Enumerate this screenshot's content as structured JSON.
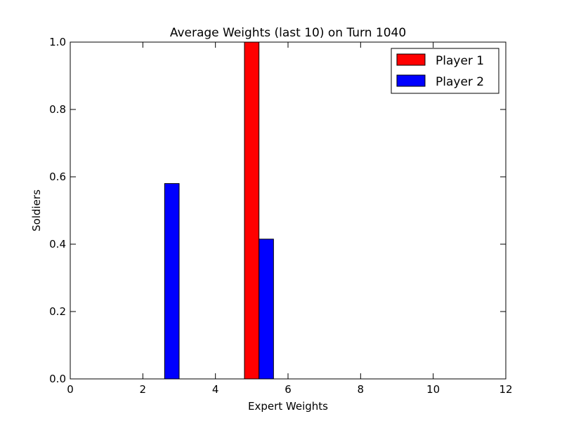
{
  "chart_data": {
    "type": "bar",
    "title": "Average Weights (last 10) on Turn 1040",
    "xlabel": "Expert Weights",
    "ylabel": "Soldiers",
    "xlim": [
      0,
      12
    ],
    "ylim": [
      0,
      1.0
    ],
    "xticks": [
      0,
      2,
      4,
      6,
      8,
      10,
      12
    ],
    "yticks": [
      0.0,
      0.2,
      0.4,
      0.6,
      0.8,
      1.0
    ],
    "xtick_labels": [
      "0",
      "2",
      "4",
      "6",
      "8",
      "10",
      "12"
    ],
    "ytick_labels": [
      "0.0",
      "0.2",
      "0.4",
      "0.6",
      "0.8",
      "1.0"
    ],
    "bar_width": 0.4,
    "x": [
      0.8,
      1.6,
      2.2,
      3.0,
      3.8,
      4.8,
      5.6,
      6.4,
      7.2,
      8.0,
      8.8,
      9.6,
      10.4
    ],
    "series": [
      {
        "name": "Player 1",
        "color": "#ff0000",
        "offset": 0,
        "values": [
          0.0,
          0.0,
          0.0,
          0.0,
          0.0,
          1.0,
          0.0,
          0.0,
          0.0,
          0.0,
          0.0,
          0.0,
          0.0
        ]
      },
      {
        "name": "Player 2",
        "color": "#0000ff",
        "offset": 0.4,
        "values": [
          0.0,
          0.0,
          0.58,
          0.0,
          0.0,
          0.415,
          0.0,
          0.0,
          0.0,
          0.0,
          0.0,
          0.0,
          0.0
        ]
      }
    ],
    "legend": {
      "position": "top-right"
    },
    "grid": false
  }
}
